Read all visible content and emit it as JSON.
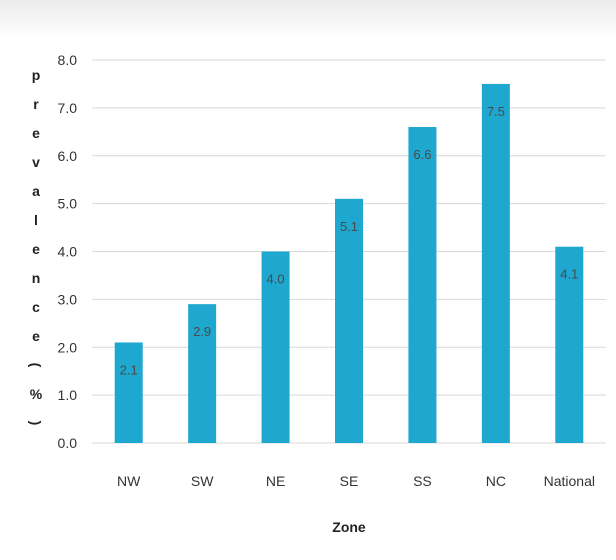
{
  "chart_data": {
    "type": "bar",
    "categories": [
      "NW",
      "SW",
      "NE",
      "SE",
      "SS",
      "NC",
      "National"
    ],
    "values": [
      2.1,
      2.9,
      4.0,
      5.1,
      6.6,
      7.5,
      4.1
    ],
    "data_labels": [
      "2.1",
      "2.9",
      "4.0",
      "5.1",
      "6.6",
      "7.5",
      "4.1"
    ],
    "xlabel": "Zone",
    "ylabel": "prevalence (%)",
    "ylim": [
      0,
      8
    ],
    "yticks": [
      "0.0",
      "1.0",
      "2.0",
      "3.0",
      "4.0",
      "5.0",
      "6.0",
      "7.0",
      "8.0"
    ],
    "grid": true,
    "legend": "none",
    "bar_color": "#1ea7cf",
    "grid_color": "#d9d9d9"
  }
}
